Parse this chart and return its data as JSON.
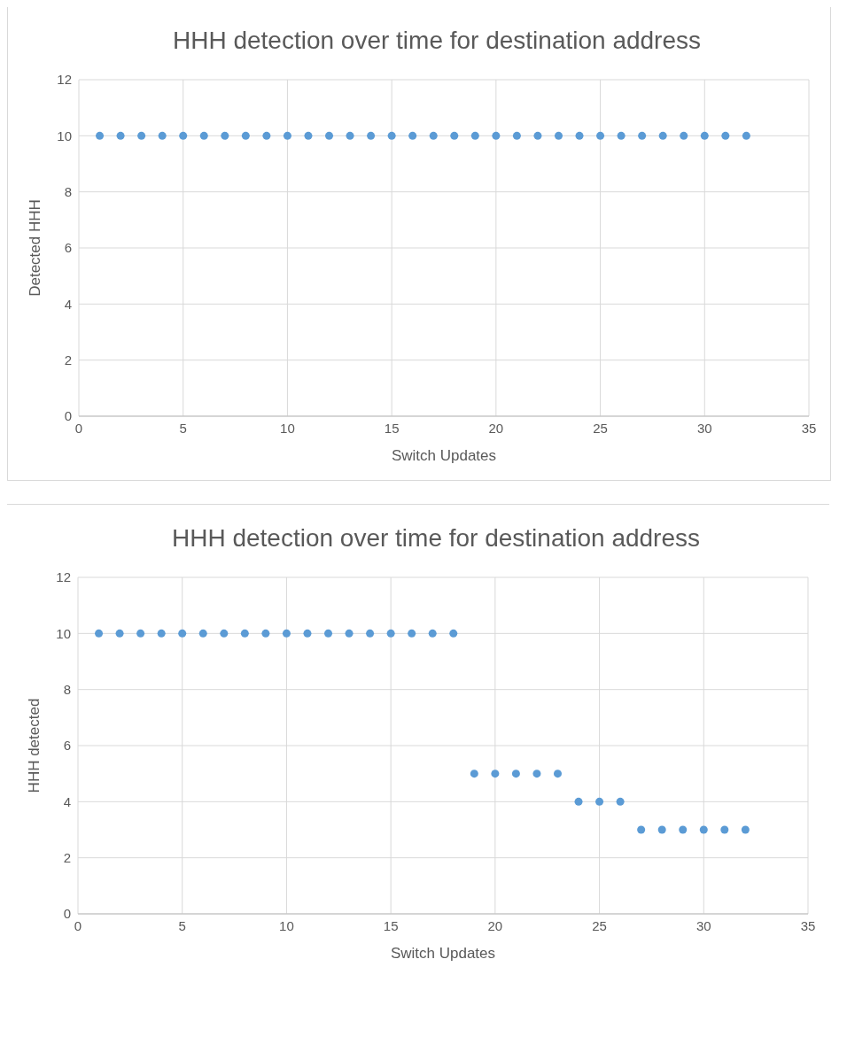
{
  "chart_data": [
    {
      "type": "scatter",
      "title": "HHH detection over time for destination address",
      "xlabel": "Switch Updates",
      "ylabel": "Detected  HHH",
      "x": [
        1,
        2,
        3,
        4,
        5,
        6,
        7,
        8,
        9,
        10,
        11,
        12,
        13,
        14,
        15,
        16,
        17,
        18,
        19,
        20,
        21,
        22,
        23,
        24,
        25,
        26,
        27,
        28,
        29,
        30,
        31,
        32
      ],
      "series": [
        {
          "color": "#5b9bd5",
          "values": [
            10,
            10,
            10,
            10,
            10,
            10,
            10,
            10,
            10,
            10,
            10,
            10,
            10,
            10,
            10,
            10,
            10,
            10,
            10,
            10,
            10,
            10,
            10,
            10,
            10,
            10,
            10,
            10,
            10,
            10,
            10,
            10
          ]
        }
      ],
      "xlim": [
        0,
        35
      ],
      "xticks": [
        0,
        5,
        10,
        15,
        20,
        25,
        30,
        35
      ],
      "ylim": [
        0,
        12
      ],
      "yticks": [
        0,
        2,
        4,
        6,
        8,
        10,
        12
      ],
      "grid": true,
      "marker": "circle"
    },
    {
      "type": "scatter",
      "title": "HHH detection over time for destination address",
      "xlabel": "Switch Updates",
      "ylabel": "HHH detected",
      "x": [
        1,
        2,
        3,
        4,
        5,
        6,
        7,
        8,
        9,
        10,
        11,
        12,
        13,
        14,
        15,
        16,
        17,
        18,
        19,
        20,
        21,
        22,
        23,
        24,
        25,
        26,
        27,
        28,
        29,
        30,
        31,
        32
      ],
      "series": [
        {
          "color": "#5b9bd5",
          "values": [
            10,
            10,
            10,
            10,
            10,
            10,
            10,
            10,
            10,
            10,
            10,
            10,
            10,
            10,
            10,
            10,
            10,
            10,
            5,
            5,
            5,
            5,
            5,
            4,
            4,
            4,
            3,
            3,
            3,
            3,
            3,
            3
          ]
        }
      ],
      "xlim": [
        0,
        35
      ],
      "xticks": [
        0,
        5,
        10,
        15,
        20,
        25,
        30,
        35
      ],
      "ylim": [
        0,
        12
      ],
      "yticks": [
        0,
        2,
        4,
        6,
        8,
        10,
        12
      ],
      "grid": true,
      "marker": "circle"
    }
  ]
}
